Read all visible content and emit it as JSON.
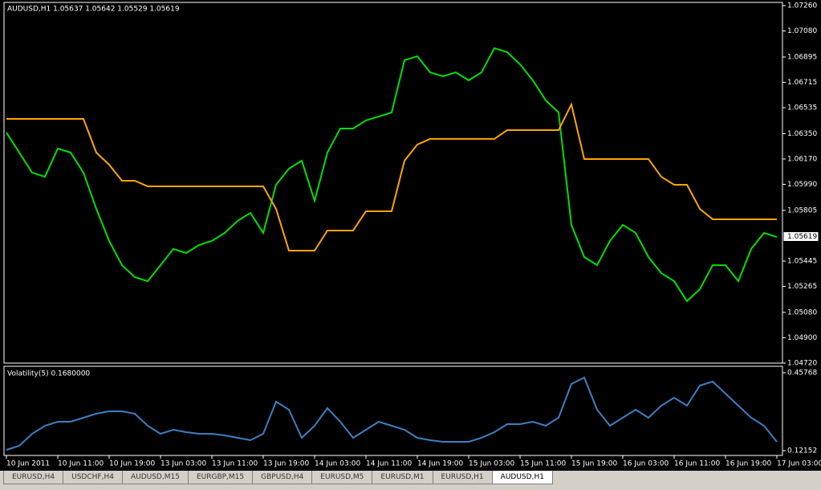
{
  "chart_data": [
    {
      "type": "line",
      "title": "AUDUSD,H1  1.05637 1.05642 1.05529 1.05619",
      "last_price": 1.05619,
      "ylim": [
        1.0472,
        1.0726
      ],
      "yticks": [
        {
          "value": 1.0726,
          "label": "1.07260"
        },
        {
          "value": 1.0708,
          "label": "1.07080"
        },
        1.06895,
        1.06715,
        1.06535,
        {
          "value": 1.0635,
          "label": "1.06350"
        },
        {
          "value": 1.0617,
          "label": "1.06170"
        },
        {
          "value": 1.0599,
          "label": "1.05990"
        },
        1.05805,
        1.05445,
        1.05265,
        {
          "value": 1.0508,
          "label": "1.05080"
        },
        {
          "value": 1.049,
          "label": "1.04900"
        },
        {
          "value": 1.0472,
          "label": "1.04720"
        }
      ],
      "series": [
        {
          "color": "#00e000",
          "values": [
            1.06358,
            1.06216,
            1.06073,
            1.06044,
            1.06244,
            1.06216,
            1.06073,
            1.05816,
            1.05588,
            1.05416,
            1.05331,
            1.05302,
            1.05416,
            1.05531,
            1.05502,
            1.05559,
            1.05588,
            1.05645,
            1.0573,
            1.05787,
            1.05645,
            1.05987,
            1.06101,
            1.06158,
            1.05873,
            1.06216,
            1.06387,
            1.06387,
            1.06444,
            1.06472,
            1.06501,
            1.06872,
            1.069,
            1.06786,
            1.06758,
            1.06786,
            1.06729,
            1.06786,
            1.06958,
            1.06929,
            1.06843,
            1.06729,
            1.06587,
            1.06501,
            1.05702,
            1.05474,
            1.05416,
            1.05588,
            1.05702,
            1.05645,
            1.05474,
            1.05359,
            1.05302,
            1.0516,
            1.05245,
            1.05416,
            1.05416,
            1.05302,
            1.05531,
            1.05645,
            1.05616
          ]
        },
        {
          "color": "#ffa500",
          "values": [
            1.06455,
            1.06455,
            1.06455,
            1.06455,
            1.06455,
            1.06455,
            1.06455,
            1.06216,
            1.0613,
            1.06016,
            1.06016,
            1.05976,
            1.05976,
            1.05976,
            1.05976,
            1.05976,
            1.05976,
            1.05976,
            1.05976,
            1.05976,
            1.05976,
            1.05816,
            1.05519,
            1.05519,
            1.05519,
            1.05662,
            1.05662,
            1.05662,
            1.05799,
            1.05799,
            1.05799,
            1.06158,
            1.06273,
            1.06313,
            1.06313,
            1.06313,
            1.06313,
            1.06313,
            1.06313,
            1.06375,
            1.06375,
            1.06375,
            1.06375,
            1.06375,
            1.06558,
            1.0617,
            1.0617,
            1.0617,
            1.0617,
            1.0617,
            1.0617,
            1.06044,
            1.05987,
            1.05987,
            1.05816,
            1.05742,
            1.05742,
            1.05742,
            1.05742,
            1.05742,
            1.05742
          ]
        }
      ]
    },
    {
      "type": "line",
      "title": "Volatility(5) 0.1680000",
      "ylim": [
        0.12152,
        0.45768
      ],
      "yticks": [
        0.45768,
        0.12152
      ],
      "series": [
        {
          "color": "#3c7fc0",
          "values": [
            0.12494,
            0.14227,
            0.19426,
            0.22892,
            0.24625,
            0.24625,
            0.26358,
            0.28091,
            0.29131,
            0.29131,
            0.28091,
            0.22892,
            0.19426,
            0.21159,
            0.2012,
            0.19426,
            0.19426,
            0.18733,
            0.17693,
            0.16654,
            0.19426,
            0.3329,
            0.29824,
            0.17693,
            0.22892,
            0.30518,
            0.24625,
            0.17693,
            0.21159,
            0.24625,
            0.22892,
            0.21159,
            0.17693,
            0.16654,
            0.1596,
            0.1596,
            0.1596,
            0.17693,
            0.2012,
            0.23586,
            0.23586,
            0.24625,
            0.22892,
            0.26358,
            0.40916,
            0.43688,
            0.29824,
            0.22892,
            0.26358,
            0.29824,
            0.26358,
            0.31557,
            0.35023,
            0.31557,
            0.40222,
            0.41955,
            0.36756,
            0.31557,
            0.26358,
            0.22892,
            0.1596
          ]
        }
      ]
    }
  ],
  "x_labels": [
    "10 Jun 2011",
    "10 Jun 11:00",
    "10 Jun 19:00",
    "13 Jun 03:00",
    "13 Jun 11:00",
    "13 Jun 19:00",
    "14 Jun 03:00",
    "14 Jun 11:00",
    "14 Jun 19:00",
    "15 Jun 03:00",
    "15 Jun 11:00",
    "15 Jun 19:00",
    "16 Jun 03:00",
    "16 Jun 11:00",
    "16 Jun 19:00",
    "17 Jun 03:00"
  ],
  "tabs": [
    "EURUSD,H4",
    "USDCHF,H4",
    "AUDUSD,M15",
    "EURGBP,M15",
    "GBPUSD,H4",
    "EURUSD,M5",
    "EURUSD,M1",
    "EURUSD,H1",
    "AUDUSD,H1"
  ]
}
